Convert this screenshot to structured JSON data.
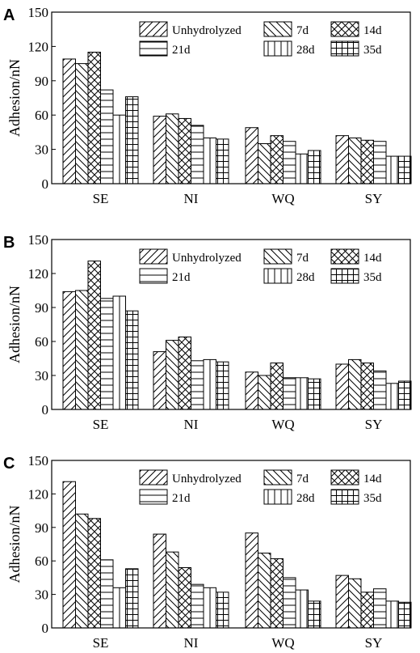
{
  "chart_data": [
    {
      "panel": "A",
      "type": "bar",
      "categories": [
        "SE",
        "NI",
        "WQ",
        "SY"
      ],
      "ylabel": "Adhesion/nN",
      "ylim": [
        0,
        150
      ],
      "yticks": [
        "0",
        "30",
        "60",
        "90",
        "120",
        "150"
      ],
      "series": [
        {
          "name": "Unhydrolyzed",
          "values": [
            109,
            59,
            49,
            42
          ]
        },
        {
          "name": "7d",
          "values": [
            105,
            61,
            35,
            40
          ]
        },
        {
          "name": "14d",
          "values": [
            115,
            57,
            42,
            38
          ]
        },
        {
          "name": "21d",
          "values": [
            82,
            51,
            37,
            37
          ]
        },
        {
          "name": "28d",
          "values": [
            60,
            40,
            26,
            24
          ]
        },
        {
          "name": "35d",
          "values": [
            76,
            39,
            29,
            24
          ]
        }
      ]
    },
    {
      "panel": "B",
      "type": "bar",
      "categories": [
        "SE",
        "NI",
        "WQ",
        "SY"
      ],
      "ylabel": "Adhesion/nN",
      "ylim": [
        0,
        150
      ],
      "yticks": [
        "0",
        "30",
        "60",
        "90",
        "120",
        "150"
      ],
      "series": [
        {
          "name": "Unhydrolyzed",
          "values": [
            104,
            51,
            33,
            40
          ]
        },
        {
          "name": "7d",
          "values": [
            105,
            61,
            30,
            44
          ]
        },
        {
          "name": "14d",
          "values": [
            131,
            64,
            41,
            41
          ]
        },
        {
          "name": "21d",
          "values": [
            98,
            43,
            28,
            34
          ]
        },
        {
          "name": "28d",
          "values": [
            100,
            44,
            28,
            23
          ]
        },
        {
          "name": "35d",
          "values": [
            87,
            42,
            27,
            25
          ]
        }
      ]
    },
    {
      "panel": "C",
      "type": "bar",
      "categories": [
        "SE",
        "NI",
        "WQ",
        "SY"
      ],
      "ylabel": "Adhesion/nN",
      "ylim": [
        0,
        150
      ],
      "yticks": [
        "0",
        "30",
        "60",
        "90",
        "120",
        "150"
      ],
      "series": [
        {
          "name": "Unhydrolyzed",
          "values": [
            131,
            84,
            85,
            47
          ]
        },
        {
          "name": "7d",
          "values": [
            102,
            68,
            67,
            44
          ]
        },
        {
          "name": "14d",
          "values": [
            98,
            54,
            62,
            32
          ]
        },
        {
          "name": "21d",
          "values": [
            61,
            39,
            45,
            35
          ]
        },
        {
          "name": "28d",
          "values": [
            36,
            36,
            34,
            24
          ]
        },
        {
          "name": "35d",
          "values": [
            53,
            32,
            24,
            23
          ]
        }
      ]
    }
  ]
}
